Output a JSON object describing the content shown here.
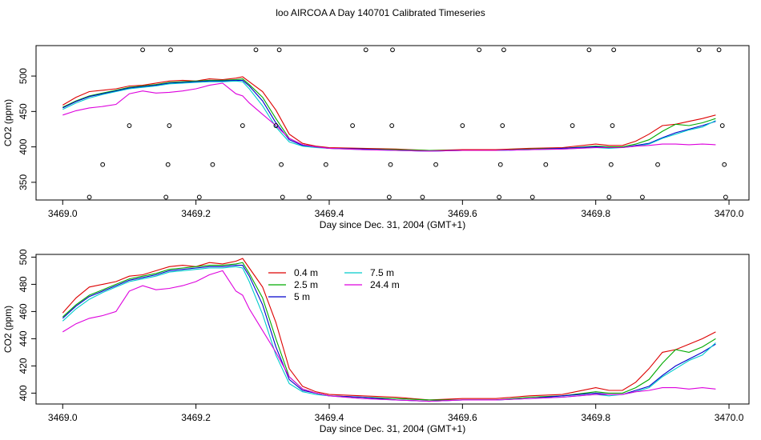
{
  "title": "loo AIRCOA A  Day 140701  Calibrated Timeseries",
  "chart_data": [
    {
      "type": "line",
      "xlabel": "Day since Dec. 31, 2004 (GMT+1)",
      "ylabel": "CO2 (ppm)",
      "xlim": [
        3468.96,
        3470.03
      ],
      "ylim": [
        325,
        543
      ],
      "xticks": [
        "3469.0",
        "3469.2",
        "3469.4",
        "3469.6",
        "3469.8",
        "3470.0"
      ],
      "yticks": [
        "350",
        "400",
        "450",
        "500"
      ],
      "legend": "none",
      "series": [
        {
          "name": "0.4 m",
          "color": "#dd0000",
          "x": [
            3469.0,
            3469.02,
            3469.04,
            3469.06,
            3469.08,
            3469.1,
            3469.12,
            3469.14,
            3469.16,
            3469.18,
            3469.2,
            3469.22,
            3469.24,
            3469.26,
            3469.27,
            3469.28,
            3469.3,
            3469.32,
            3469.34,
            3469.36,
            3469.38,
            3469.4,
            3469.45,
            3469.5,
            3469.55,
            3469.6,
            3469.65,
            3469.7,
            3469.75,
            3469.8,
            3469.82,
            3469.84,
            3469.86,
            3469.88,
            3469.9,
            3469.92,
            3469.94,
            3469.96,
            3469.98
          ],
          "y": [
            459,
            470,
            478,
            480,
            482,
            486,
            487,
            490,
            493,
            494,
            493,
            496,
            495,
            497,
            499,
            492,
            478,
            452,
            418,
            405,
            401,
            399,
            398,
            397,
            395,
            396,
            396,
            398,
            399,
            404,
            402,
            402,
            408,
            418,
            430,
            432,
            436,
            440,
            445
          ]
        },
        {
          "name": "2.5 m",
          "color": "#00aa00",
          "x": [
            3469.0,
            3469.02,
            3469.04,
            3469.06,
            3469.08,
            3469.1,
            3469.12,
            3469.14,
            3469.16,
            3469.18,
            3469.2,
            3469.22,
            3469.24,
            3469.26,
            3469.27,
            3469.28,
            3469.3,
            3469.32,
            3469.34,
            3469.36,
            3469.38,
            3469.4,
            3469.45,
            3469.5,
            3469.55,
            3469.6,
            3469.65,
            3469.7,
            3469.75,
            3469.8,
            3469.82,
            3469.84,
            3469.86,
            3469.88,
            3469.9,
            3469.92,
            3469.94,
            3469.96,
            3469.98
          ],
          "y": [
            456,
            465,
            472,
            476,
            480,
            484,
            486,
            488,
            491,
            492,
            493,
            494,
            494,
            495,
            496,
            488,
            470,
            440,
            412,
            403,
            400,
            398,
            397,
            396,
            395,
            395,
            395,
            397,
            398,
            401,
            400,
            400,
            404,
            410,
            422,
            432,
            430,
            434,
            440
          ]
        },
        {
          "name": "5 m",
          "color": "#0000cc",
          "x": [
            3469.0,
            3469.02,
            3469.04,
            3469.06,
            3469.08,
            3469.1,
            3469.12,
            3469.14,
            3469.16,
            3469.18,
            3469.2,
            3469.22,
            3469.24,
            3469.26,
            3469.27,
            3469.28,
            3469.3,
            3469.32,
            3469.34,
            3469.36,
            3469.38,
            3469.4,
            3469.45,
            3469.5,
            3469.55,
            3469.6,
            3469.65,
            3469.7,
            3469.75,
            3469.8,
            3469.82,
            3469.84,
            3469.86,
            3469.88,
            3469.9,
            3469.92,
            3469.94,
            3469.96,
            3469.98
          ],
          "y": [
            455,
            464,
            471,
            475,
            479,
            483,
            485,
            487,
            490,
            491,
            492,
            493,
            493,
            494,
            494,
            486,
            465,
            434,
            410,
            402,
            400,
            398,
            397,
            395,
            394,
            395,
            395,
            396,
            398,
            400,
            399,
            399,
            402,
            405,
            413,
            420,
            425,
            430,
            436
          ]
        },
        {
          "name": "7.5 m",
          "color": "#00cccc",
          "x": [
            3469.0,
            3469.02,
            3469.04,
            3469.06,
            3469.08,
            3469.1,
            3469.12,
            3469.14,
            3469.16,
            3469.18,
            3469.2,
            3469.22,
            3469.24,
            3469.26,
            3469.27,
            3469.28,
            3469.3,
            3469.32,
            3469.34,
            3469.36,
            3469.38,
            3469.4,
            3469.45,
            3469.5,
            3469.55,
            3469.6,
            3469.65,
            3469.7,
            3469.75,
            3469.8,
            3469.82,
            3469.84,
            3469.86,
            3469.88,
            3469.9,
            3469.92,
            3469.94,
            3469.96,
            3469.98
          ],
          "y": [
            453,
            462,
            469,
            474,
            478,
            482,
            484,
            486,
            489,
            490,
            491,
            492,
            492,
            493,
            492,
            482,
            458,
            428,
            407,
            401,
            399,
            398,
            396,
            395,
            394,
            395,
            395,
            396,
            397,
            399,
            398,
            399,
            401,
            404,
            412,
            418,
            424,
            428,
            437
          ]
        },
        {
          "name": "24.4 m",
          "color": "#dd00dd",
          "x": [
            3469.0,
            3469.02,
            3469.04,
            3469.06,
            3469.08,
            3469.1,
            3469.12,
            3469.14,
            3469.16,
            3469.18,
            3469.2,
            3469.22,
            3469.24,
            3469.26,
            3469.27,
            3469.28,
            3469.3,
            3469.32,
            3469.34,
            3469.36,
            3469.38,
            3469.4,
            3469.45,
            3469.5,
            3469.55,
            3469.6,
            3469.65,
            3469.7,
            3469.75,
            3469.8,
            3469.82,
            3469.84,
            3469.86,
            3469.88,
            3469.9,
            3469.92,
            3469.94,
            3469.96,
            3469.98
          ],
          "y": [
            445,
            451,
            455,
            457,
            460,
            475,
            479,
            476,
            477,
            479,
            482,
            487,
            490,
            475,
            472,
            462,
            446,
            430,
            412,
            403,
            400,
            398,
            396,
            395,
            394,
            395,
            395,
            396,
            397,
            399,
            399,
            399,
            401,
            402,
            404,
            404,
            403,
            404,
            403
          ]
        }
      ],
      "points": {
        "x": [
          3469.04,
          3469.06,
          3469.1,
          3469.12,
          3469.155,
          3469.158,
          3469.16,
          3469.162,
          3469.205,
          3469.225,
          3469.27,
          3469.29,
          3469.32,
          3469.325,
          3469.328,
          3469.33,
          3469.37,
          3469.395,
          3469.435,
          3469.455,
          3469.49,
          3469.492,
          3469.494,
          3469.495,
          3469.54,
          3469.56,
          3469.6,
          3469.625,
          3469.655,
          3469.657,
          3469.66,
          3469.662,
          3469.705,
          3469.725,
          3469.765,
          3469.79,
          3469.82,
          3469.823,
          3469.825,
          3469.827,
          3469.87,
          3469.893,
          3469.955,
          3469.985,
          3469.99,
          3469.993,
          3469.995
        ],
        "y": [
          329,
          375,
          430,
          537,
          329,
          375,
          430,
          537,
          329,
          375,
          430,
          537,
          430,
          537,
          375,
          329,
          329,
          375,
          430,
          537,
          329,
          375,
          430,
          537,
          329,
          375,
          430,
          537,
          329,
          375,
          430,
          537,
          329,
          375,
          430,
          537,
          329,
          375,
          430,
          537,
          329,
          375,
          537,
          537,
          430,
          375,
          329
        ]
      }
    },
    {
      "type": "line",
      "xlabel": "Day since Dec. 31, 2004 (GMT+1)",
      "ylabel": "CO2 (ppm)",
      "xlim": [
        3468.96,
        3470.03
      ],
      "ylim": [
        392,
        502
      ],
      "xticks": [
        "3469.0",
        "3469.2",
        "3469.4",
        "3469.6",
        "3469.8",
        "3470.0"
      ],
      "yticks": [
        "400",
        "420",
        "440",
        "460",
        "480",
        "500"
      ],
      "legend": "top-center",
      "legend_entries": [
        "0.4 m",
        "2.5 m",
        "5 m",
        "7.5 m",
        "24.4 m"
      ],
      "series_ref": "same as panel 1 series"
    }
  ]
}
